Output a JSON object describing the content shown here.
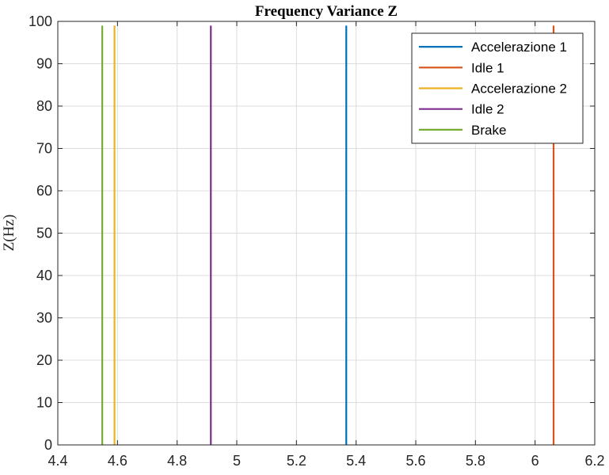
{
  "chart_data": {
    "type": "line",
    "title": "Frequency Variance Z",
    "xlabel": "",
    "ylabel": "Z(Hz)",
    "xlim": [
      4.4,
      6.2
    ],
    "ylim": [
      0,
      100
    ],
    "x_ticks": [
      "4.4",
      "4.6",
      "4.8",
      "5",
      "5.2",
      "5.4",
      "5.6",
      "5.8",
      "6",
      "6.2"
    ],
    "y_ticks": [
      "0",
      "10",
      "20",
      "30",
      "40",
      "50",
      "60",
      "70",
      "80",
      "90",
      "100"
    ],
    "grid": true,
    "legend_position": "top-right",
    "series": [
      {
        "name": "Accelerazione 1",
        "color": "#0072BD",
        "x": [
          5.367,
          5.367
        ],
        "y": [
          0,
          99
        ]
      },
      {
        "name": "Idle 1",
        "color": "#D95319",
        "x": [
          6.062,
          6.062
        ],
        "y": [
          0,
          99
        ]
      },
      {
        "name": "Accelerazione 2",
        "color": "#EDB120",
        "x": [
          4.59,
          4.59
        ],
        "y": [
          0,
          99
        ]
      },
      {
        "name": "Idle 2",
        "color": "#7E2F8E",
        "x": [
          4.913,
          4.913
        ],
        "y": [
          0,
          99
        ]
      },
      {
        "name": "Brake",
        "color": "#77AC30",
        "x": [
          4.549,
          4.549
        ],
        "y": [
          0,
          99
        ]
      }
    ]
  }
}
